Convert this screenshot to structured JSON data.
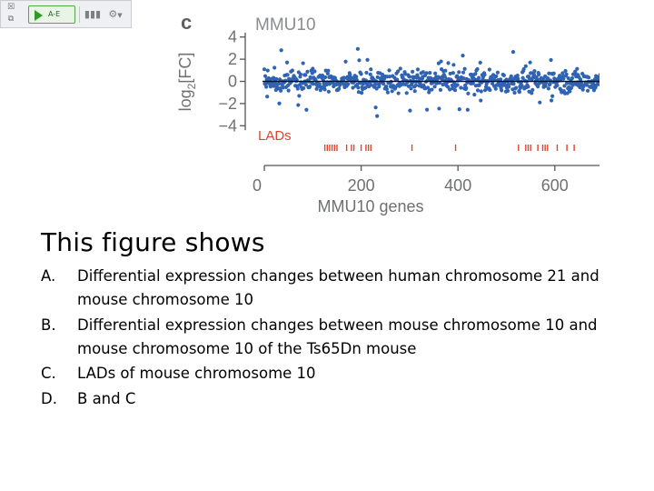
{
  "toolbar": {
    "run_label": "A-E",
    "icons": [
      "checkbox-icon",
      "copy-icon",
      "play-icon",
      "bar-chart-icon",
      "settings-icon",
      "chevron-down-icon"
    ]
  },
  "chart_data": {
    "type": "scatter",
    "panel_label": "c",
    "title": "MMU10",
    "xlabel": "MMU10 genes",
    "ylabel_base": "log",
    "ylabel_sub": "2",
    "ylabel_tail": "[FC]",
    "xlim": [
      0,
      700
    ],
    "ylim": [
      -4.5,
      4.5
    ],
    "x_ticks": [
      0,
      200,
      400,
      600
    ],
    "x_tick_labels": [
      "0",
      "200",
      "400",
      "600"
    ],
    "y_ticks": [
      4,
      2,
      0,
      -2,
      -4
    ],
    "y_tick_labels": [
      "4",
      "2",
      "0",
      "−2",
      "−4"
    ],
    "reference_line_y": 0,
    "n_points": 700,
    "point_color": "#2f63b3",
    "lad_label": "LADs",
    "lad_color": "#e0442f",
    "lad_positions": [
      125,
      130,
      135,
      140,
      145,
      150,
      170,
      180,
      185,
      200,
      210,
      215,
      220,
      305,
      395,
      525,
      540,
      545,
      550,
      565,
      575,
      580,
      585,
      605,
      625,
      640
    ]
  },
  "question": {
    "title": "This figure shows",
    "options": [
      {
        "letter": "A.",
        "text": "Differential expression changes between human chromosome 21 and mouse chromosome 10"
      },
      {
        "letter": "B.",
        "text": "Differential expression changes between mouse chromosome 10 and mouse chromosome 10 of the Ts65Dn mouse"
      },
      {
        "letter": "C.",
        "text": "LADs of mouse chromosome 10"
      },
      {
        "letter": "D.",
        "text": "B and C"
      }
    ]
  }
}
